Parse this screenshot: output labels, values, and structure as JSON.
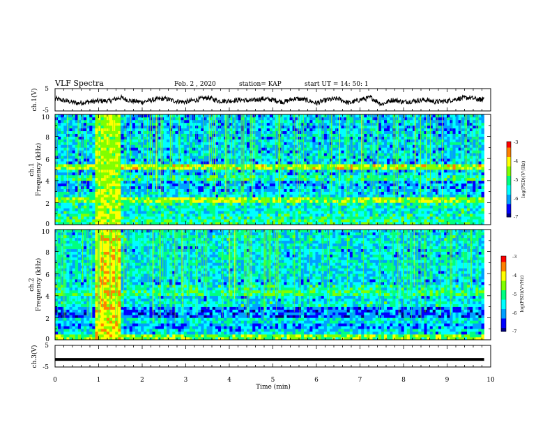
{
  "header": {
    "title": "VLF Spectra",
    "date": "Feb. 2 , 2020",
    "station": "station= KAP",
    "start": "start  UT =   14: 50: 1"
  },
  "axes": {
    "xlabel": "Time  (min)",
    "x_ticks": [
      "0",
      "1",
      "2",
      "3",
      "4",
      "5",
      "6",
      "7",
      "8",
      "9",
      "10"
    ],
    "ch1_ylabel": "ch.1(V)",
    "ch3_ylabel": "ch.3(V)",
    "wave_ticks": [
      "5",
      "-5"
    ],
    "spec1_ylabel_a": "ch.1",
    "spec1_ylabel_b": "Frequency  (kHz)",
    "spec2_ylabel_a": "ch.2",
    "spec2_ylabel_b": "Frequency  (kHz)",
    "freq_ticks": [
      "0",
      "2",
      "4",
      "6",
      "8",
      "10"
    ]
  },
  "colorbar": {
    "label": "log(PSD)(V²/Hz)",
    "ticks": [
      "-3",
      "-4",
      "-5",
      "-6",
      "-7"
    ],
    "colors": [
      "#000080",
      "#0000ff",
      "#00a0ff",
      "#00ffff",
      "#00ff80",
      "#80ff00",
      "#ffff00",
      "#ff8000",
      "#ff0000",
      "#c00000",
      "#ffffff"
    ]
  },
  "chart_data": [
    {
      "type": "line",
      "panel": "ch1-waveform",
      "xlabel": "",
      "ylabel": "ch.1(V)",
      "xlim": [
        0,
        10
      ],
      "ylim": [
        -5,
        5
      ],
      "x": [
        0,
        0.25,
        0.5,
        0.75,
        1,
        1.25,
        1.5,
        1.75,
        2,
        2.25,
        2.5,
        2.75,
        3,
        3.25,
        3.5,
        3.75,
        4,
        4.25,
        4.5,
        4.75,
        5,
        5.25,
        5.5,
        5.75,
        6,
        6.25,
        6.5,
        6.75,
        7,
        7.25,
        7.5,
        7.75,
        8,
        8.25,
        8.5,
        8.75,
        9,
        9.25,
        9.5,
        9.75,
        9.85
      ],
      "values": [
        0.5,
        -0.5,
        -1.5,
        -1,
        -0.5,
        -0.5,
        1,
        -0.5,
        -1,
        0,
        0.5,
        -0.5,
        -1,
        0,
        1,
        -0.5,
        -0.5,
        0,
        -0.5,
        0.5,
        0,
        -1,
        0.5,
        0,
        -1.5,
        0,
        0.5,
        -1.5,
        0,
        1,
        -2,
        0,
        -1,
        -0.5,
        0,
        -1,
        -0.5,
        0.5,
        1,
        0,
        0.5
      ]
    },
    {
      "type": "heatmap",
      "panel": "ch1-spectrogram",
      "xlabel": "",
      "ylabel": "Frequency  (kHz)",
      "xlim": [
        0,
        10
      ],
      "ylim": [
        0,
        10
      ],
      "zlim": [
        -7,
        -3
      ],
      "freq_kHz": [
        0.25,
        0.75,
        1.25,
        1.75,
        2.25,
        2.75,
        3.25,
        3.75,
        4.25,
        4.75,
        5.25,
        5.75,
        6.25,
        6.75,
        7.25,
        7.75,
        8.25,
        8.75,
        9.25,
        9.75
      ],
      "band_logPSD": [
        -5.0,
        -5.2,
        -5.4,
        -5.3,
        -4.5,
        -5.6,
        -5.8,
        -5.9,
        -5.2,
        -5.7,
        -4.3,
        -5.8,
        -5.6,
        -5.7,
        -5.6,
        -5.7,
        -5.7,
        -5.8,
        -5.7,
        -5.8
      ],
      "burst_minutes": [
        0.9,
        1.5
      ],
      "burst_logPSD": -4.3
    },
    {
      "type": "heatmap",
      "panel": "ch2-spectrogram",
      "xlabel": "Time  (min)",
      "ylabel": "Frequency  (kHz)",
      "xlim": [
        0,
        10
      ],
      "ylim": [
        0,
        10
      ],
      "zlim": [
        -7,
        -3
      ],
      "freq_kHz": [
        0.25,
        0.75,
        1.25,
        1.75,
        2.25,
        2.75,
        3.25,
        3.75,
        4.25,
        4.75,
        5.25,
        5.75,
        6.25,
        6.75,
        7.25,
        7.75,
        8.25,
        8.75,
        9.25,
        9.75
      ],
      "band_logPSD": [
        -4.6,
        -5.6,
        -5.9,
        -5.5,
        -6.2,
        -6.1,
        -5.4,
        -5.6,
        -5.0,
        -5.3,
        -5.7,
        -5.5,
        -5.6,
        -5.5,
        -5.5,
        -5.6,
        -5.6,
        -5.5,
        -5.4,
        -5.6
      ],
      "burst_minutes": [
        0.9,
        1.5
      ],
      "burst_logPSD": -4.0
    },
    {
      "type": "line",
      "panel": "ch3-waveform",
      "xlabel": "Time  (min)",
      "ylabel": "ch.3(V)",
      "xlim": [
        0,
        10
      ],
      "ylim": [
        -5,
        5
      ],
      "x": [
        0,
        9.85
      ],
      "values": [
        -1.5,
        -1.5
      ]
    }
  ]
}
